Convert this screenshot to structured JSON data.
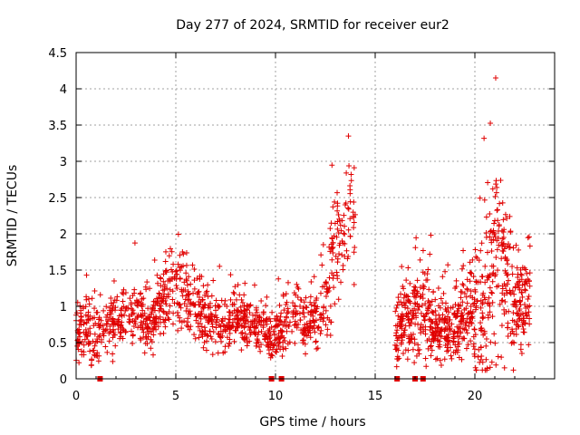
{
  "chart_data": {
    "type": "scatter",
    "title": "Day 277 of 2024, SRMTID for receiver eur2",
    "xlabel": "GPS time / hours",
    "ylabel": "SRMTID / TECUs",
    "xlim": [
      0,
      24
    ],
    "ylim": [
      0,
      4.5
    ],
    "x_ticks": [
      0,
      5,
      10,
      15,
      20
    ],
    "x_tick_labels": [
      "0",
      "5",
      "10",
      "15",
      "20"
    ],
    "y_ticks": [
      0,
      0.5,
      1,
      1.5,
      2,
      2.5,
      3,
      3.5,
      4,
      4.5
    ],
    "y_tick_labels": [
      "0",
      "0.5",
      "1",
      "1.5",
      "2",
      "2.5",
      "3",
      "3.5",
      "4",
      "4.5"
    ],
    "grid": true,
    "marker": "+",
    "color": "#e00000",
    "gap_markers_x": [
      1.2,
      9.8,
      10.3,
      16.1,
      17.0,
      17.4
    ],
    "series": [
      {
        "name": "SRMTID",
        "segments": [
          {
            "t": [
              0.0,
              0.5,
              1.0,
              1.5,
              2.0,
              2.5,
              3.0,
              3.5,
              4.0,
              4.5,
              5.0,
              5.5,
              6.0,
              6.5,
              7.0,
              7.5,
              8.0,
              8.5,
              9.0,
              9.5,
              10.0,
              10.5,
              11.0,
              11.5,
              12.0,
              12.5,
              13.0,
              13.5,
              14.0
            ],
            "center": [
              0.6,
              0.75,
              0.55,
              0.7,
              0.8,
              0.85,
              0.9,
              0.75,
              0.85,
              1.1,
              1.3,
              1.2,
              1.0,
              0.85,
              0.75,
              0.7,
              0.85,
              0.8,
              0.7,
              0.65,
              0.6,
              0.75,
              0.85,
              0.8,
              0.9,
              1.1,
              1.8,
              2.3,
              2.0
            ],
            "spread": [
              0.35,
              0.35,
              0.35,
              0.35,
              0.35,
              0.35,
              0.35,
              0.35,
              0.35,
              0.45,
              0.55,
              0.45,
              0.4,
              0.3,
              0.3,
              0.25,
              0.3,
              0.3,
              0.25,
              0.25,
              0.25,
              0.35,
              0.35,
              0.35,
              0.35,
              0.55,
              0.85,
              0.9,
              0.7
            ],
            "count": 1150
          },
          {
            "t": [
              16.0,
              16.5,
              17.0,
              17.5,
              18.0,
              18.5,
              19.0,
              19.5,
              20.0,
              20.5,
              21.0,
              21.5,
              22.0,
              22.5,
              22.8
            ],
            "center": [
              0.6,
              0.8,
              0.85,
              0.9,
              0.7,
              0.65,
              0.8,
              0.9,
              0.85,
              1.1,
              1.8,
              1.3,
              1.1,
              1.0,
              1.2
            ],
            "spread": [
              0.35,
              0.45,
              0.55,
              0.6,
              0.35,
              0.35,
              0.4,
              0.55,
              0.7,
              1.0,
              1.3,
              0.85,
              0.7,
              0.45,
              0.5
            ],
            "count": 760
          }
        ]
      }
    ]
  }
}
